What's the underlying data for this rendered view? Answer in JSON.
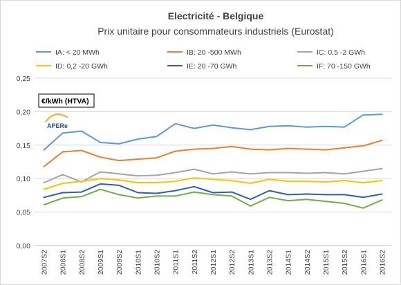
{
  "chart_data": {
    "type": "line",
    "title": "Electricité - Belgique",
    "subtitle": "Prix unitaire pour consommateurs industriels (Eurostat)",
    "unit_label": "€/kWh (HTVA)",
    "logo_text": "APERe",
    "ylim": [
      0,
      0.25
    ],
    "yticks": [
      "0,00",
      "0,05",
      "0,10",
      "0,15",
      "0,20",
      "0,25"
    ],
    "grid": true,
    "legend_position": "top",
    "categories": [
      "2007S2",
      "2008S1",
      "2008S2",
      "2009S1",
      "2009S2",
      "2010S1",
      "2010S2",
      "2011S1",
      "2011S2",
      "2012S1",
      "2012S2",
      "2013S1",
      "2013S2",
      "2014S1",
      "2014S2",
      "2015S1",
      "2015S2",
      "2016S1",
      "2016S2"
    ],
    "series": [
      {
        "name": "IA: < 20 MWh",
        "color": "#5b9bd5",
        "values": [
          0.143,
          0.168,
          0.171,
          0.154,
          0.152,
          0.159,
          0.163,
          0.182,
          0.175,
          0.18,
          0.176,
          0.173,
          0.178,
          0.179,
          0.177,
          0.178,
          0.177,
          0.195,
          0.196
        ]
      },
      {
        "name": "IB: 20 -500 MWh",
        "color": "#ed7d31",
        "values": [
          0.118,
          0.14,
          0.142,
          0.132,
          0.127,
          0.129,
          0.131,
          0.141,
          0.144,
          0.145,
          0.148,
          0.144,
          0.143,
          0.145,
          0.144,
          0.143,
          0.146,
          0.149,
          0.157
        ]
      },
      {
        "name": "IC: 0,5 -2 GWh",
        "color": "#a5a5a5",
        "values": [
          0.094,
          0.106,
          0.095,
          0.11,
          0.107,
          0.104,
          0.105,
          0.109,
          0.114,
          0.107,
          0.11,
          0.107,
          0.109,
          0.109,
          0.108,
          0.109,
          0.107,
          0.111,
          0.115
        ]
      },
      {
        "name": "ID: 0,2 -20 GWh",
        "color": "#ffc000",
        "values": [
          0.084,
          0.093,
          0.096,
          0.1,
          0.098,
          0.094,
          0.094,
          0.096,
          0.101,
          0.099,
          0.097,
          0.093,
          0.099,
          0.096,
          0.096,
          0.095,
          0.097,
          0.094,
          0.097
        ]
      },
      {
        "name": "IE: 20 -70 GWh",
        "color": "#2e5ea8",
        "values": [
          0.072,
          0.079,
          0.08,
          0.092,
          0.09,
          0.079,
          0.078,
          0.082,
          0.088,
          0.079,
          0.08,
          0.069,
          0.082,
          0.076,
          0.077,
          0.076,
          0.076,
          0.072,
          0.077
        ]
      },
      {
        "name": "IF: 70 -150 GWh",
        "color": "#70ad47",
        "values": [
          0.061,
          0.071,
          0.073,
          0.084,
          0.076,
          0.071,
          0.074,
          0.074,
          0.08,
          0.076,
          0.074,
          0.059,
          0.072,
          0.067,
          0.069,
          0.066,
          0.063,
          0.056,
          0.068
        ]
      }
    ]
  }
}
